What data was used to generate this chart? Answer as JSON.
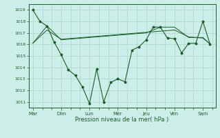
{
  "xlabel": "Pression niveau de la mer( hPa )",
  "bg_color": "#cceee8",
  "grid_color": "#aad4cc",
  "line_color": "#1a5c28",
  "ylim": [
    1010.5,
    1019.5
  ],
  "yticks": [
    1011,
    1012,
    1013,
    1014,
    1015,
    1016,
    1017,
    1018,
    1019
  ],
  "days": [
    "Mar",
    "Dim",
    "Lun",
    "Mer",
    "Jeu",
    "Ven",
    "Sam"
  ],
  "day_x": [
    0,
    1,
    2,
    3,
    4,
    5,
    6
  ],
  "series1_x": [
    0.0,
    0.25,
    0.5,
    0.75,
    1.0,
    1.25,
    1.5,
    1.75,
    2.0,
    2.25,
    2.5,
    2.75,
    3.0,
    3.25,
    3.5,
    3.75,
    4.0,
    4.25,
    4.5,
    4.75,
    5.0,
    5.25,
    5.5,
    5.75,
    6.0,
    6.25
  ],
  "series1_y": [
    1019.0,
    1018.0,
    1017.6,
    1016.2,
    1015.1,
    1013.8,
    1013.3,
    1012.3,
    1010.85,
    1013.85,
    1011.0,
    1012.7,
    1013.0,
    1012.75,
    1015.5,
    1015.8,
    1016.4,
    1017.5,
    1017.5,
    1016.55,
    1016.5,
    1015.25,
    1016.1,
    1016.1,
    1018.0,
    1016.05
  ],
  "series2_x": [
    0.0,
    0.5,
    1.0,
    1.5,
    2.0,
    2.5,
    3.0,
    3.5,
    4.0,
    4.5,
    5.0,
    5.5,
    6.0,
    6.25
  ],
  "series2_y": [
    1016.1,
    1017.25,
    1016.45,
    1016.55,
    1016.65,
    1016.75,
    1016.85,
    1016.95,
    1017.05,
    1017.15,
    1017.25,
    1016.65,
    1016.55,
    1016.05
  ],
  "series3_x": [
    0.0,
    0.5,
    1.0,
    1.5,
    2.0,
    2.5,
    3.0,
    3.5,
    4.0,
    4.5,
    5.0,
    5.5,
    6.0,
    6.25
  ],
  "series3_y": [
    1016.1,
    1017.6,
    1016.4,
    1016.5,
    1016.6,
    1016.7,
    1016.8,
    1016.9,
    1017.0,
    1017.5,
    1017.5,
    1016.6,
    1016.6,
    1016.05
  ]
}
